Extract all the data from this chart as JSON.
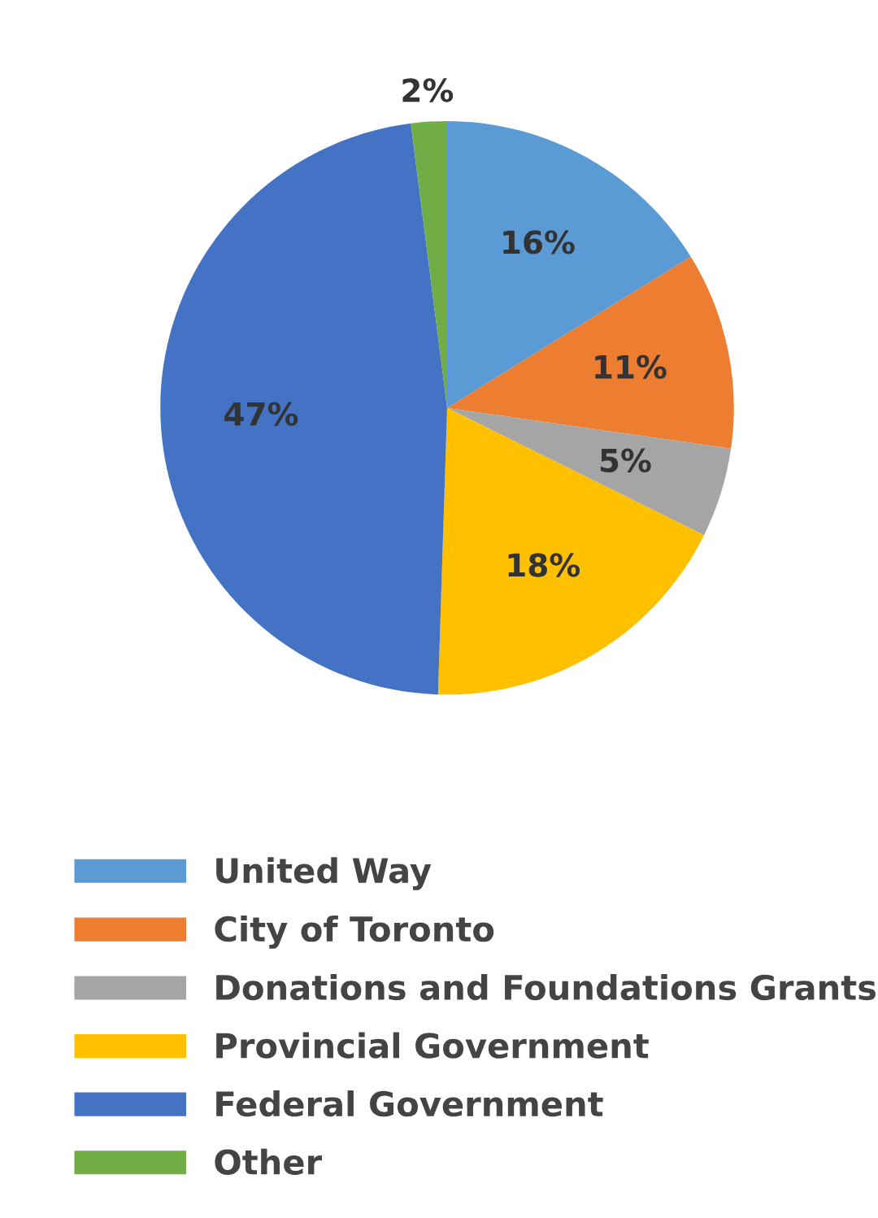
{
  "chart_data": {
    "type": "pie",
    "categories": [
      "United Way",
      "City of Toronto",
      "Donations and Foundations Grants",
      "Provincial Government",
      "Federal Government",
      "Other"
    ],
    "values": [
      16,
      11,
      5,
      18,
      47,
      2
    ],
    "colors": [
      "#5b9bd5",
      "#ed7d31",
      "#a5a5a5",
      "#ffc000",
      "#4472c4",
      "#70ad47"
    ],
    "value_labels": [
      "16%",
      "11%",
      "5%",
      "18%",
      "47%",
      "2%"
    ],
    "legend": "bottom"
  }
}
